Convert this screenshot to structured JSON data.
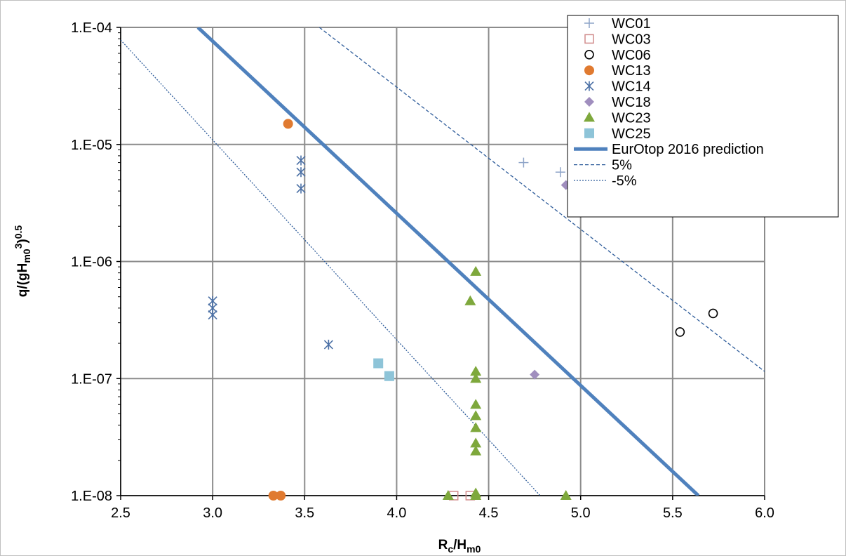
{
  "chart_data": {
    "type": "scatter",
    "title": "",
    "xlabel": {
      "main": "R",
      "sub1": "c",
      "mid": "/H",
      "sub2": "m0"
    },
    "ylabel": {
      "main": "q/(gH",
      "sub": "m0",
      "sup1": "3",
      "close": ")",
      "sup2": "0.5"
    },
    "xlim": [
      2.5,
      6.0
    ],
    "ylim": [
      1e-08,
      0.0001
    ],
    "y_scale": "log",
    "grid": true,
    "legend_position": "top-right",
    "x_ticks": [
      2.5,
      3.0,
      3.5,
      4.0,
      4.5,
      5.0,
      5.5,
      6.0
    ],
    "x_tick_labels": [
      "2.5",
      "3.0",
      "3.5",
      "4.0",
      "4.5",
      "5.0",
      "5.5",
      "6.0"
    ],
    "y_ticks": [
      1e-08,
      1e-07,
      1e-06,
      1e-05,
      0.0001
    ],
    "y_tick_labels": [
      "1.E-08",
      "1.E-07",
      "1.E-06",
      "1.E-05",
      "1.E-04"
    ],
    "series": [
      {
        "name": "WC01",
        "marker": "plus",
        "color": "#8EA4C8",
        "points": [
          [
            4.69,
            7e-06
          ],
          [
            4.89,
            5.8e-06
          ]
        ]
      },
      {
        "name": "WC03",
        "marker": "open-square",
        "color": "#D08C8C",
        "points": [
          [
            4.31,
            1e-08
          ],
          [
            4.4,
            1e-08
          ]
        ]
      },
      {
        "name": "WC06",
        "marker": "open-circle",
        "color": "#000000",
        "points": [
          [
            5.54,
            2.5e-07
          ],
          [
            5.72,
            3.6e-07
          ]
        ]
      },
      {
        "name": "WC13",
        "marker": "filled-circle",
        "color": "#E07A30",
        "points": [
          [
            3.41,
            1.5e-05
          ],
          [
            3.33,
            1e-08
          ],
          [
            3.37,
            1e-08
          ]
        ]
      },
      {
        "name": "WC14",
        "marker": "asterisk",
        "color": "#4A6FA5",
        "points": [
          [
            3.48,
            7.3e-06
          ],
          [
            3.48,
            5.8e-06
          ],
          [
            3.48,
            4.2e-06
          ],
          [
            3.0,
            4.6e-07
          ],
          [
            3.0,
            4e-07
          ],
          [
            3.0,
            3.5e-07
          ],
          [
            3.63,
            1.95e-07
          ]
        ]
      },
      {
        "name": "WC18",
        "marker": "diamond",
        "color": "#A08EBE",
        "points": [
          [
            4.92,
            4.5e-06
          ],
          [
            4.75,
            1.08e-07
          ]
        ]
      },
      {
        "name": "WC23",
        "marker": "triangle",
        "color": "#7EA83C",
        "points": [
          [
            4.43,
            8.2e-07
          ],
          [
            4.4,
            4.6e-07
          ],
          [
            4.43,
            1.15e-07
          ],
          [
            4.43,
            1e-07
          ],
          [
            4.43,
            6e-08
          ],
          [
            4.43,
            4.8e-08
          ],
          [
            4.43,
            3.8e-08
          ],
          [
            4.43,
            2.8e-08
          ],
          [
            4.43,
            2.4e-08
          ],
          [
            4.43,
            1.05e-08
          ],
          [
            4.43,
            1e-08
          ],
          [
            4.28,
            1e-08
          ],
          [
            4.92,
            1e-08
          ]
        ]
      },
      {
        "name": "WC25",
        "marker": "filled-square",
        "color": "#8EC4D8",
        "points": [
          [
            3.9,
            1.35e-07
          ],
          [
            3.96,
            1.05e-07
          ]
        ]
      }
    ],
    "lines": [
      {
        "name": "EurOtop 2016 prediction",
        "style": "solid-thick",
        "color": "#4F81BD",
        "points": [
          [
            2.92,
            0.0001
          ],
          [
            5.64,
            1e-08
          ]
        ]
      },
      {
        "name": "5%",
        "style": "dashed",
        "color": "#2E5C9A",
        "points": [
          [
            3.58,
            0.0001
          ],
          [
            6.0,
            1.15e-07
          ]
        ]
      },
      {
        "name": "-5%",
        "style": "dotted",
        "color": "#2E5C9A",
        "points": [
          [
            2.5,
            7.8e-05
          ],
          [
            4.78,
            1e-08
          ]
        ]
      }
    ]
  }
}
